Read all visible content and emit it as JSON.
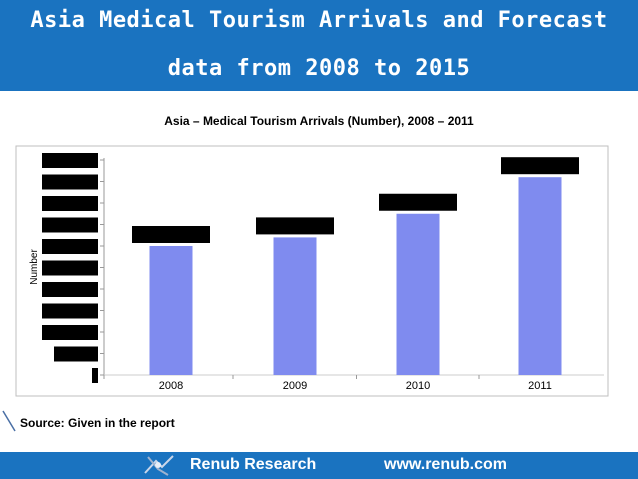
{
  "header": {
    "title_line1": "Asia Medical Tourism Arrivals and Forecast",
    "title_line2": "data from 2008 to 2015"
  },
  "source_note": "Source: Given in the report",
  "footer": {
    "brand": "Renub Research",
    "url": "www.renub.com"
  },
  "colors": {
    "banner": "#1a73c0",
    "bar": "#7f8bef",
    "redaction": "#000000"
  },
  "chart_data": {
    "type": "bar",
    "title": "Asia – Medical Tourism Arrivals (Number), 2008 – 2011",
    "xlabel": "",
    "ylabel": "Number",
    "categories": [
      "2008",
      "2009",
      "2010",
      "2011"
    ],
    "values": [
      60,
      64,
      75,
      92
    ],
    "ylim": [
      0,
      100
    ],
    "y_ticks_count": 11,
    "data_labels_redacted": true,
    "y_tick_labels_redacted": true,
    "grid": false
  }
}
